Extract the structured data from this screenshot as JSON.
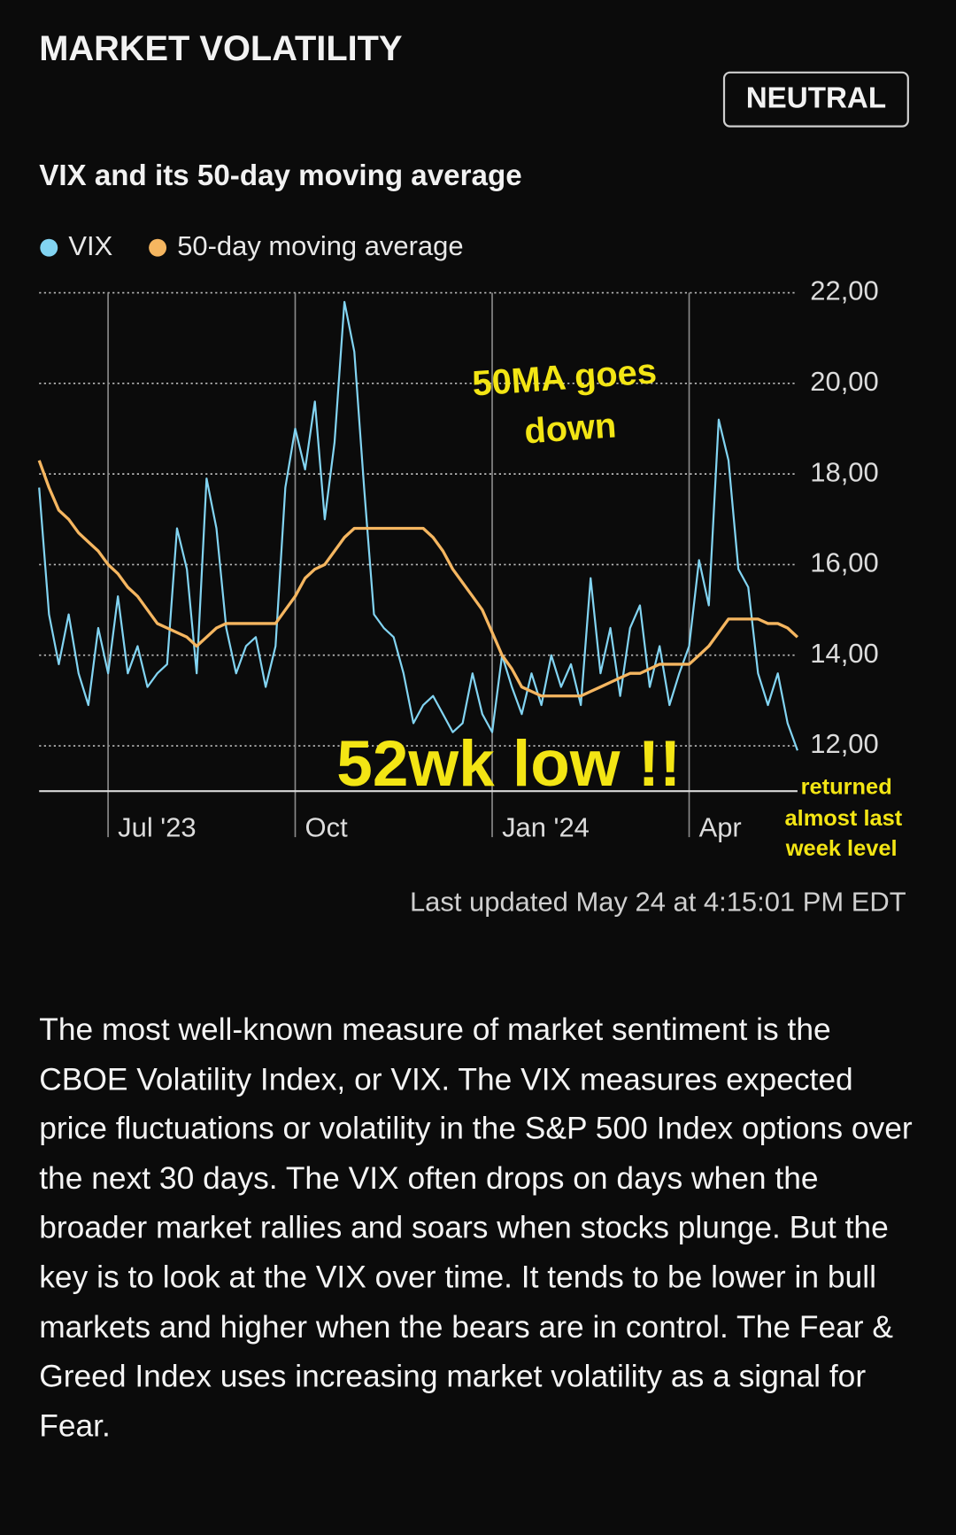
{
  "header": {
    "title": "MARKET VOLATILITY",
    "badge": "NEUTRAL"
  },
  "chart_data": {
    "type": "line",
    "title": "VIX and its 50-day moving average",
    "categories": [
      null,
      null,
      null,
      null,
      null,
      null,
      null,
      "Jul '23",
      null,
      null,
      null,
      null,
      null,
      null,
      null,
      null,
      null,
      null,
      null,
      null,
      null,
      null,
      null,
      null,
      null,
      null,
      "Oct",
      null,
      null,
      null,
      null,
      null,
      null,
      null,
      null,
      null,
      null,
      null,
      null,
      null,
      null,
      null,
      null,
      null,
      null,
      null,
      "Jan '24",
      null,
      null,
      null,
      null,
      null,
      null,
      null,
      null,
      null,
      null,
      null,
      null,
      null,
      null,
      null,
      null,
      null,
      null,
      null,
      "Apr",
      null,
      null,
      null,
      null,
      null,
      null,
      null,
      null,
      null,
      null,
      null
    ],
    "series": [
      {
        "name": "VIX",
        "color": "#82d4f2",
        "values": [
          17.7,
          14.9,
          13.8,
          14.9,
          13.6,
          12.9,
          14.6,
          13.6,
          15.3,
          13.6,
          14.2,
          13.3,
          13.6,
          13.8,
          16.8,
          15.9,
          13.6,
          17.9,
          16.8,
          14.6,
          13.6,
          14.2,
          14.4,
          13.3,
          14.2,
          17.7,
          19.0,
          18.1,
          19.6,
          17.0,
          18.7,
          21.8,
          20.7,
          17.7,
          14.9,
          14.6,
          14.4,
          13.6,
          12.5,
          12.9,
          13.1,
          12.7,
          12.3,
          12.5,
          13.6,
          12.7,
          12.3,
          14.0,
          13.3,
          12.7,
          13.6,
          12.9,
          14.0,
          13.3,
          13.8,
          12.9,
          15.7,
          13.6,
          14.6,
          13.1,
          14.6,
          15.1,
          13.3,
          14.2,
          12.9,
          13.6,
          14.2,
          16.1,
          15.1,
          19.2,
          18.3,
          15.9,
          15.5,
          13.6,
          12.9,
          13.6,
          12.5,
          11.9
        ]
      },
      {
        "name": "50-day moving average",
        "color": "#f5b660",
        "values": [
          18.3,
          17.7,
          17.2,
          17.0,
          16.7,
          16.5,
          16.3,
          16.0,
          15.8,
          15.5,
          15.3,
          15.0,
          14.7,
          14.6,
          14.5,
          14.4,
          14.2,
          14.4,
          14.6,
          14.7,
          14.7,
          14.7,
          14.7,
          14.7,
          14.7,
          15.0,
          15.3,
          15.7,
          15.9,
          16.0,
          16.3,
          16.6,
          16.8,
          16.8,
          16.8,
          16.8,
          16.8,
          16.8,
          16.8,
          16.8,
          16.6,
          16.3,
          15.9,
          15.6,
          15.3,
          15.0,
          14.5,
          14.0,
          13.7,
          13.3,
          13.2,
          13.1,
          13.1,
          13.1,
          13.1,
          13.1,
          13.2,
          13.3,
          13.4,
          13.5,
          13.6,
          13.6,
          13.7,
          13.8,
          13.8,
          13.8,
          13.8,
          14.0,
          14.2,
          14.5,
          14.8,
          14.8,
          14.8,
          14.8,
          14.7,
          14.7,
          14.6,
          14.4
        ]
      }
    ],
    "ylim": [
      11,
      22
    ],
    "yticks": [
      {
        "value": 12,
        "label": "12,00"
      },
      {
        "value": 14,
        "label": "14,00"
      },
      {
        "value": 16,
        "label": "16,00"
      },
      {
        "value": 18,
        "label": "18,00"
      },
      {
        "value": 20,
        "label": "20,00"
      },
      {
        "value": 22,
        "label": "22,00"
      }
    ],
    "grid": true,
    "legend": "top-left",
    "annotations": [
      "50MA goes",
      "down",
      "52wk low !!",
      "returned",
      "almost last",
      "week level"
    ]
  },
  "updated": "Last updated May 24 at 4:15:01 PM EDT",
  "body": "The most well-known measure of market sentiment is the CBOE Volatility Index, or VIX. The VIX measures expected price fluctuations or volatility in the S&P 500 Index options over the next 30 days. The VIX often drops on days when the broader market rallies and soars when stocks plunge. But the key is to look at the VIX over time. It tends to be lower in bull markets and higher when the bears are in control. The Fear & Greed Index uses increasing market volatility as a signal for Fear."
}
